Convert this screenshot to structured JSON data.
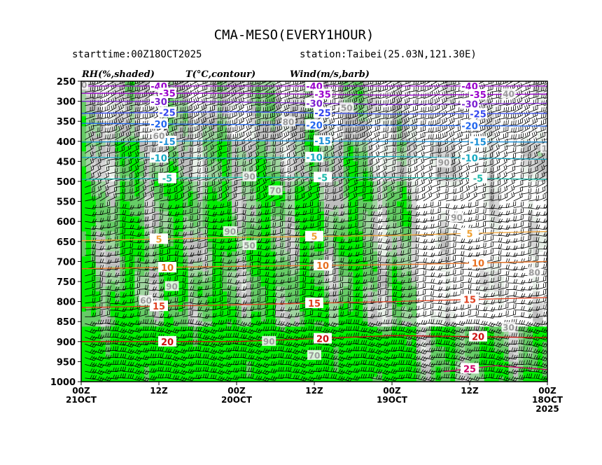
{
  "title": "CMA-MESO(EVERY1HOUR)",
  "starttime": "starttime:00Z18OCT2025",
  "station": "station:Taibei(25.03N,121.30E)",
  "headers": {
    "rh": "RH(%,shaded)",
    "temp": "T(°C,contour)",
    "wind": "Wind(m/s,barb)"
  },
  "chart_data": {
    "type": "heatmap",
    "description_axes": "time-height cross section",
    "y_axis": {
      "label": "",
      "ticks": [
        250,
        300,
        350,
        400,
        450,
        500,
        550,
        600,
        650,
        700,
        750,
        800,
        850,
        900,
        950,
        1000
      ],
      "range": [
        1000,
        250
      ]
    },
    "x_axis": {
      "label": "",
      "ticks": [
        {
          "hour": 72,
          "line1": "00Z",
          "line2": "21OCT",
          "line3": ""
        },
        {
          "hour": 60,
          "line1": "12Z",
          "line2": "",
          "line3": ""
        },
        {
          "hour": 48,
          "line1": "00Z",
          "line2": "20OCT",
          "line3": ""
        },
        {
          "hour": 36,
          "line1": "12Z",
          "line2": "",
          "line3": ""
        },
        {
          "hour": 24,
          "line1": "00Z",
          "line2": "19OCT",
          "line3": ""
        },
        {
          "hour": 12,
          "line1": "12Z",
          "line2": "",
          "line3": ""
        },
        {
          "hour": 0,
          "line1": "00Z",
          "line2": "18OCT",
          "line3": "2025"
        }
      ],
      "range": [
        72,
        0
      ]
    },
    "temperature_contours": [
      {
        "value": -40,
        "label": "-40",
        "color": "#9900cc",
        "levels": [
          [
            0,
            262
          ],
          [
            20,
            262
          ],
          [
            40,
            262
          ],
          [
            60,
            262
          ],
          [
            72,
            262
          ]
        ]
      },
      {
        "value": -35,
        "label": "-35",
        "color": "#9900cc",
        "levels": [
          [
            0,
            282
          ],
          [
            24,
            285
          ],
          [
            48,
            280
          ],
          [
            72,
            280
          ]
        ]
      },
      {
        "value": -30,
        "label": "-30",
        "color": "#7a1fd0",
        "levels": [
          [
            0,
            305
          ],
          [
            24,
            308
          ],
          [
            48,
            302
          ],
          [
            72,
            300
          ]
        ]
      },
      {
        "value": -25,
        "label": "-25",
        "color": "#3344ee",
        "levels": [
          [
            0,
            330
          ],
          [
            24,
            332
          ],
          [
            48,
            326
          ],
          [
            72,
            330
          ]
        ]
      },
      {
        "value": -20,
        "label": "-20",
        "color": "#2266ee",
        "levels": [
          [
            0,
            362
          ],
          [
            24,
            360
          ],
          [
            48,
            358
          ],
          [
            72,
            355
          ]
        ]
      },
      {
        "value": -15,
        "label": "-15",
        "color": "#1b8fd6",
        "levels": [
          [
            0,
            402
          ],
          [
            24,
            400
          ],
          [
            48,
            398
          ],
          [
            72,
            402
          ]
        ]
      },
      {
        "value": -10,
        "label": "-10",
        "color": "#14a8c0",
        "levels": [
          [
            0,
            445
          ],
          [
            24,
            438
          ],
          [
            48,
            442
          ],
          [
            72,
            440
          ]
        ]
      },
      {
        "value": -5,
        "label": "-5",
        "color": "#15b8a8",
        "levels": [
          [
            0,
            495
          ],
          [
            24,
            490
          ],
          [
            48,
            490
          ],
          [
            72,
            495
          ]
        ]
      },
      {
        "value": 5,
        "label": "5",
        "color": "#f0a030",
        "levels": [
          [
            0,
            625
          ],
          [
            24,
            635
          ],
          [
            48,
            640
          ],
          [
            72,
            648
          ]
        ]
      },
      {
        "value": 10,
        "label": "10",
        "color": "#e87020",
        "levels": [
          [
            0,
            700
          ],
          [
            24,
            708
          ],
          [
            48,
            712
          ],
          [
            72,
            718
          ]
        ]
      },
      {
        "value": 15,
        "label": "15",
        "color": "#e04020",
        "levels": [
          [
            0,
            790
          ],
          [
            24,
            800
          ],
          [
            48,
            808
          ],
          [
            72,
            815
          ]
        ]
      },
      {
        "value": 20,
        "label": "20",
        "color": "#cc1010",
        "levels": [
          [
            0,
            890
          ],
          [
            24,
            885
          ],
          [
            48,
            900
          ],
          [
            72,
            900
          ]
        ]
      },
      {
        "value": 25,
        "label": "25",
        "color": "#cc0066",
        "levels": [
          [
            0,
            970
          ],
          [
            8,
            960
          ],
          [
            16,
            975
          ]
        ]
      }
    ],
    "rh_labels": [
      {
        "text": "40",
        "hour": 72
      },
      {
        "text": "60",
        "hour": 60
      },
      {
        "text": "70",
        "hour": 42
      },
      {
        "text": "50",
        "hour": 46
      },
      {
        "text": "60",
        "hour": 62
      },
      {
        "text": "70",
        "hour": 36
      },
      {
        "text": "80",
        "hour": 40
      },
      {
        "text": "90",
        "hour": 46
      },
      {
        "text": "90",
        "hour": 49
      },
      {
        "text": "90",
        "hour": 58
      },
      {
        "text": "90",
        "hour": 43
      },
      {
        "text": "50",
        "hour": 31
      },
      {
        "text": "90",
        "hour": 16
      },
      {
        "text": "90",
        "hour": 14
      },
      {
        "text": "80",
        "hour": 2
      },
      {
        "text": "30",
        "hour": 6
      },
      {
        "text": "40",
        "hour": 6
      },
      {
        "text": "10",
        "hour": 0
      }
    ],
    "rh_shading": [
      {
        "level": "90-100",
        "color": "#00ee00"
      },
      {
        "level": "80-90",
        "color": "#66cc66"
      },
      {
        "level": "70-80",
        "color": "#9fd49f"
      },
      {
        "level": "60-70",
        "color": "#bfbfbf"
      },
      {
        "level": "50-60",
        "color": "#d6d6d6"
      },
      {
        "level": "40-50",
        "color": "#e8f0e8"
      }
    ]
  }
}
